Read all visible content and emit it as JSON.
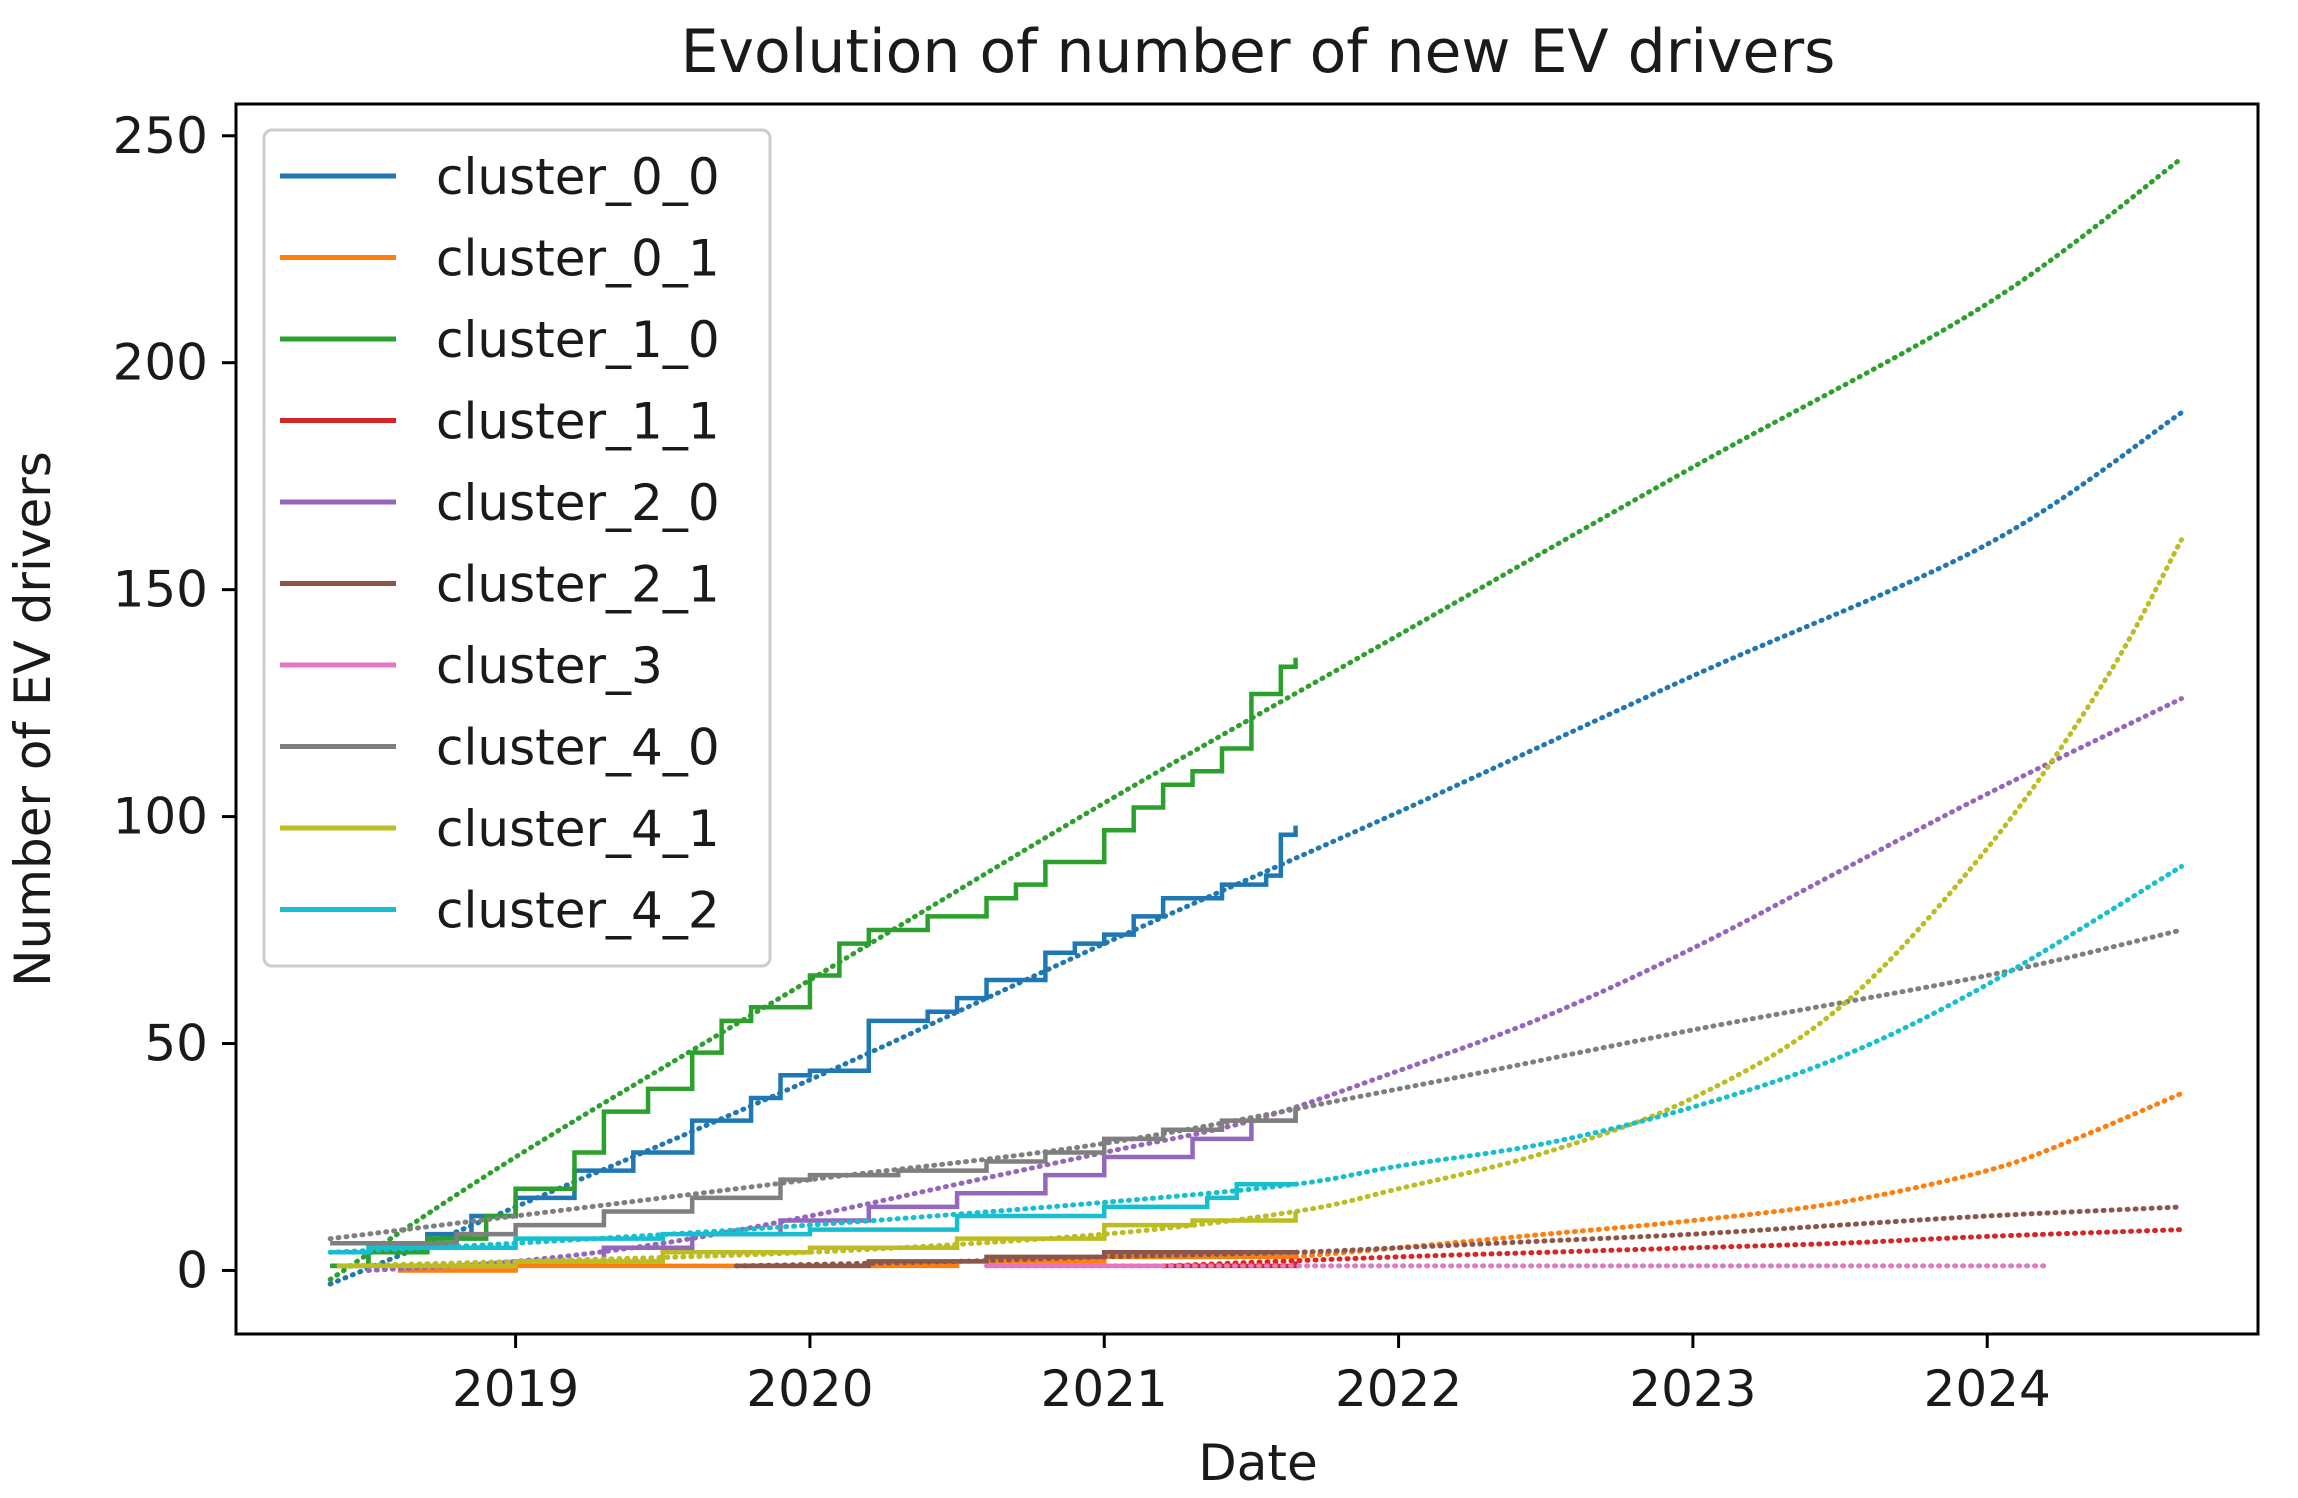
{
  "chart_data": {
    "type": "line",
    "title": "Evolution of number of new EV drivers",
    "xlabel": "Date",
    "ylabel": "Number of EV drivers",
    "xlim": [
      2018.05,
      2024.92
    ],
    "ylim": [
      -14,
      257
    ],
    "xticks": [
      2019,
      2020,
      2021,
      2022,
      2023,
      2024
    ],
    "xtick_labels": [
      "2019",
      "2020",
      "2021",
      "2022",
      "2023",
      "2024"
    ],
    "yticks": [
      0,
      50,
      100,
      150,
      200,
      250
    ],
    "ytick_labels": [
      "0",
      "50",
      "100",
      "150",
      "200",
      "250"
    ],
    "legend_position": "upper-left",
    "line_styles": {
      "actual": "solid step",
      "trend": "dotted"
    },
    "series": [
      {
        "name": "cluster_0_0",
        "color": "#1f77b4",
        "actual": [
          [
            2018.37,
            1
          ],
          [
            2018.5,
            4
          ],
          [
            2018.7,
            8
          ],
          [
            2018.85,
            12
          ],
          [
            2019.0,
            16
          ],
          [
            2019.2,
            22
          ],
          [
            2019.4,
            26
          ],
          [
            2019.6,
            33
          ],
          [
            2019.8,
            38
          ],
          [
            2019.9,
            43
          ],
          [
            2020.0,
            44
          ],
          [
            2020.2,
            55
          ],
          [
            2020.4,
            57
          ],
          [
            2020.5,
            60
          ],
          [
            2020.6,
            64
          ],
          [
            2020.8,
            70
          ],
          [
            2020.9,
            72
          ],
          [
            2021.0,
            74
          ],
          [
            2021.1,
            78
          ],
          [
            2021.2,
            82
          ],
          [
            2021.4,
            85
          ],
          [
            2021.55,
            87
          ],
          [
            2021.6,
            96
          ],
          [
            2021.65,
            98
          ]
        ],
        "trend": [
          [
            2018.37,
            -3
          ],
          [
            2019.0,
            14
          ],
          [
            2020.0,
            42
          ],
          [
            2021.0,
            72
          ],
          [
            2022.0,
            101
          ],
          [
            2023.0,
            131
          ],
          [
            2024.0,
            160
          ],
          [
            2024.66,
            189
          ]
        ]
      },
      {
        "name": "cluster_0_1",
        "color": "#ff7f0e",
        "actual": [
          [
            2018.6,
            0
          ],
          [
            2019.0,
            1
          ],
          [
            2019.5,
            1
          ],
          [
            2020.0,
            1
          ],
          [
            2020.5,
            2
          ],
          [
            2021.0,
            3
          ],
          [
            2021.65,
            4
          ]
        ],
        "trend": [
          [
            2021.65,
            3
          ],
          [
            2022.0,
            5
          ],
          [
            2022.5,
            8
          ],
          [
            2023.0,
            11
          ],
          [
            2023.5,
            15
          ],
          [
            2024.0,
            22
          ],
          [
            2024.3,
            29
          ],
          [
            2024.66,
            39
          ]
        ]
      },
      {
        "name": "cluster_1_0",
        "color": "#2ca02c",
        "actual": [
          [
            2018.37,
            1
          ],
          [
            2018.5,
            4
          ],
          [
            2018.7,
            7
          ],
          [
            2018.9,
            12
          ],
          [
            2019.0,
            18
          ],
          [
            2019.2,
            26
          ],
          [
            2019.3,
            35
          ],
          [
            2019.45,
            40
          ],
          [
            2019.6,
            48
          ],
          [
            2019.7,
            55
          ],
          [
            2019.8,
            58
          ],
          [
            2020.0,
            65
          ],
          [
            2020.1,
            72
          ],
          [
            2020.2,
            75
          ],
          [
            2020.4,
            78
          ],
          [
            2020.6,
            82
          ],
          [
            2020.7,
            85
          ],
          [
            2020.8,
            90
          ],
          [
            2021.0,
            97
          ],
          [
            2021.1,
            102
          ],
          [
            2021.2,
            107
          ],
          [
            2021.3,
            110
          ],
          [
            2021.4,
            115
          ],
          [
            2021.5,
            127
          ],
          [
            2021.6,
            133
          ],
          [
            2021.65,
            135
          ]
        ],
        "trend": [
          [
            2018.37,
            -2
          ],
          [
            2019.0,
            25
          ],
          [
            2020.0,
            64
          ],
          [
            2021.0,
            103
          ],
          [
            2022.0,
            140
          ],
          [
            2023.0,
            177
          ],
          [
            2024.0,
            213
          ],
          [
            2024.66,
            245
          ]
        ]
      },
      {
        "name": "cluster_1_1",
        "color": "#d62728",
        "actual": [
          [
            2021.2,
            1
          ],
          [
            2021.65,
            2
          ]
        ],
        "trend": [
          [
            2021.2,
            1
          ],
          [
            2022.0,
            3
          ],
          [
            2022.5,
            4
          ],
          [
            2023.0,
            5
          ],
          [
            2023.5,
            6
          ],
          [
            2024.0,
            7.5
          ],
          [
            2024.66,
            9
          ]
        ]
      },
      {
        "name": "cluster_2_0",
        "color": "#9467bd",
        "actual": [
          [
            2018.5,
            1
          ],
          [
            2019.0,
            2
          ],
          [
            2019.3,
            5
          ],
          [
            2019.6,
            8
          ],
          [
            2019.9,
            11
          ],
          [
            2020.2,
            14
          ],
          [
            2020.5,
            17
          ],
          [
            2020.8,
            21
          ],
          [
            2021.0,
            25
          ],
          [
            2021.3,
            29
          ],
          [
            2021.5,
            33
          ],
          [
            2021.65,
            36
          ]
        ],
        "trend": [
          [
            2018.5,
            0
          ],
          [
            2019.0,
            2
          ],
          [
            2019.5,
            6
          ],
          [
            2020.0,
            12
          ],
          [
            2020.5,
            19
          ],
          [
            2021.0,
            26
          ],
          [
            2021.5,
            33
          ],
          [
            2022.0,
            44
          ],
          [
            2022.5,
            56
          ],
          [
            2023.0,
            71
          ],
          [
            2023.5,
            88
          ],
          [
            2024.0,
            105
          ],
          [
            2024.66,
            126
          ]
        ]
      },
      {
        "name": "cluster_2_1",
        "color": "#8c564b",
        "actual": [
          [
            2019.75,
            1
          ],
          [
            2020.2,
            2
          ],
          [
            2020.6,
            3
          ],
          [
            2021.0,
            4
          ],
          [
            2021.65,
            4
          ]
        ],
        "trend": [
          [
            2019.75,
            1
          ],
          [
            2020.5,
            2
          ],
          [
            2021.0,
            3
          ],
          [
            2021.65,
            4
          ],
          [
            2022.0,
            5
          ],
          [
            2022.5,
            6.5
          ],
          [
            2023.0,
            8
          ],
          [
            2023.5,
            10
          ],
          [
            2024.0,
            12
          ],
          [
            2024.66,
            14
          ]
        ]
      },
      {
        "name": "cluster_3",
        "color": "#e377c2",
        "actual": [
          [
            2020.6,
            1
          ],
          [
            2021.2,
            1
          ]
        ],
        "trend": [
          [
            2020.6,
            1
          ],
          [
            2022.0,
            1
          ],
          [
            2023.0,
            1
          ],
          [
            2024.2,
            1
          ]
        ]
      },
      {
        "name": "cluster_4_0",
        "color": "#7f7f7f",
        "actual": [
          [
            2018.37,
            6
          ],
          [
            2018.8,
            8
          ],
          [
            2019.0,
            10
          ],
          [
            2019.3,
            13
          ],
          [
            2019.6,
            16
          ],
          [
            2019.9,
            20
          ],
          [
            2020.0,
            21
          ],
          [
            2020.3,
            22
          ],
          [
            2020.6,
            24
          ],
          [
            2020.8,
            26
          ],
          [
            2021.0,
            29
          ],
          [
            2021.2,
            31
          ],
          [
            2021.4,
            33
          ],
          [
            2021.65,
            36
          ]
        ],
        "trend": [
          [
            2018.37,
            7
          ],
          [
            2019.0,
            12
          ],
          [
            2020.0,
            20
          ],
          [
            2021.0,
            28
          ],
          [
            2022.0,
            40
          ],
          [
            2023.0,
            53
          ],
          [
            2024.0,
            65
          ],
          [
            2024.66,
            75
          ]
        ]
      },
      {
        "name": "cluster_4_1",
        "color": "#bcbd22",
        "actual": [
          [
            2018.4,
            1
          ],
          [
            2019.0,
            2
          ],
          [
            2019.5,
            4
          ],
          [
            2020.0,
            5
          ],
          [
            2020.5,
            7
          ],
          [
            2021.0,
            10
          ],
          [
            2021.3,
            11
          ],
          [
            2021.65,
            13
          ]
        ],
        "trend": [
          [
            2018.4,
            1
          ],
          [
            2019.0,
            2
          ],
          [
            2020.0,
            4
          ],
          [
            2021.0,
            8
          ],
          [
            2021.65,
            13
          ],
          [
            2022.0,
            18
          ],
          [
            2022.5,
            26
          ],
          [
            2023.0,
            38
          ],
          [
            2023.5,
            58
          ],
          [
            2024.0,
            93
          ],
          [
            2024.4,
            130
          ],
          [
            2024.66,
            161
          ]
        ]
      },
      {
        "name": "cluster_4_2",
        "color": "#17becf",
        "actual": [
          [
            2018.37,
            4
          ],
          [
            2018.5,
            5
          ],
          [
            2019.0,
            7
          ],
          [
            2019.5,
            8
          ],
          [
            2020.0,
            9
          ],
          [
            2020.5,
            12
          ],
          [
            2021.0,
            14
          ],
          [
            2021.35,
            16
          ],
          [
            2021.45,
            19
          ],
          [
            2021.65,
            19
          ]
        ],
        "trend": [
          [
            2018.37,
            4
          ],
          [
            2019.0,
            6
          ],
          [
            2020.0,
            10
          ],
          [
            2021.0,
            15
          ],
          [
            2021.65,
            19
          ],
          [
            2022.0,
            23
          ],
          [
            2022.5,
            28
          ],
          [
            2023.0,
            36
          ],
          [
            2023.5,
            47
          ],
          [
            2024.0,
            63
          ],
          [
            2024.66,
            89
          ]
        ]
      }
    ]
  }
}
